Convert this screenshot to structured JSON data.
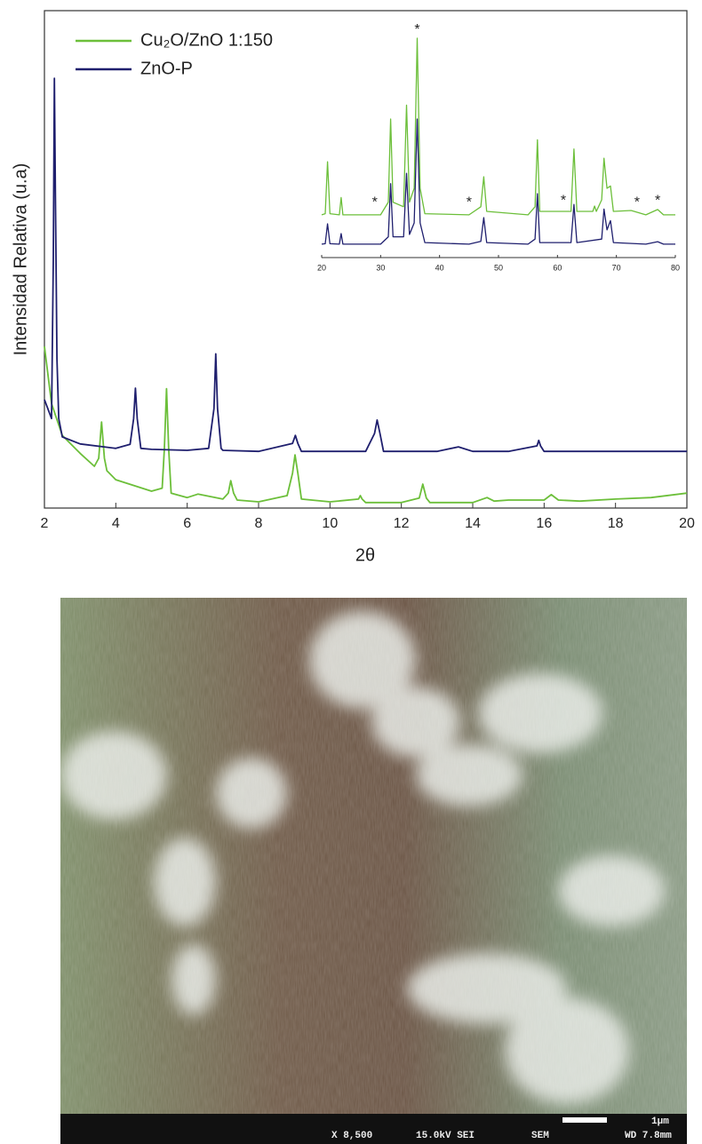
{
  "chart_data": [
    {
      "type": "line",
      "xlabel": "2θ",
      "ylabel": "Intensidad  Relativa (u.a)",
      "xlim": [
        2,
        20
      ],
      "ylim": [
        0,
        100
      ],
      "xticks": [
        2,
        4,
        6,
        8,
        10,
        12,
        14,
        16,
        18,
        20
      ],
      "legend": "upper left",
      "series": [
        {
          "name": "Cu₂O/ZnO 1:150",
          "color": "#6cbf3a",
          "x": [
            2,
            2.2,
            2.5,
            3,
            3.4,
            3.52,
            3.6,
            3.68,
            3.75,
            4,
            5,
            5.3,
            5.36,
            5.42,
            5.48,
            5.55,
            6,
            6.3,
            7,
            7.15,
            7.22,
            7.3,
            7.4,
            8,
            8.8,
            8.95,
            9.02,
            9.1,
            9.2,
            10,
            10.8,
            10.85,
            10.9,
            11,
            12,
            12.5,
            12.6,
            12.7,
            12.8,
            14,
            14.4,
            14.6,
            15,
            16,
            16.2,
            16.4,
            17,
            18,
            19,
            20
          ],
          "values": [
            32.5,
            21,
            14.6,
            11,
            8.4,
            10,
            17.3,
            10,
            7.5,
            5.7,
            3.4,
            4,
            12,
            24,
            12,
            3,
            2.1,
            2.8,
            1.8,
            3,
            5.5,
            3,
            1.6,
            1.25,
            2.5,
            7,
            10.7,
            7,
            1.8,
            1.25,
            1.8,
            2.5,
            1.8,
            1.1,
            1.1,
            2,
            4.8,
            2,
            1.1,
            1.1,
            2.1,
            1.4,
            1.6,
            1.6,
            2.7,
            1.6,
            1.4,
            1.8,
            2.1,
            3
          ]
        },
        {
          "name": "ZnO-P",
          "color": "#1f1f6e",
          "x": [
            2,
            2.2,
            2.25,
            2.28,
            2.31,
            2.35,
            2.4,
            2.5,
            3,
            4,
            4.4,
            4.5,
            4.55,
            4.6,
            4.7,
            5,
            6,
            6.6,
            6.75,
            6.8,
            6.85,
            6.95,
            7,
            8,
            8.95,
            9.03,
            9.1,
            9.2,
            10,
            11,
            11.25,
            11.32,
            11.4,
            11.5,
            13,
            13.6,
            14,
            15,
            15.8,
            15.85,
            15.9,
            16,
            18,
            20
          ],
          "values": [
            21.8,
            18,
            50,
            86.4,
            60,
            30,
            18,
            14.3,
            12.9,
            12,
            12.8,
            18,
            24.1,
            18,
            12,
            11.8,
            11.6,
            12,
            20,
            31,
            20,
            12,
            11.6,
            11.4,
            13,
            14.6,
            13,
            11.4,
            11.4,
            11.4,
            15,
            17.7,
            15,
            11.4,
            11.4,
            12.3,
            11.4,
            11.4,
            12.5,
            13.6,
            12.5,
            11.4,
            11.4,
            11.4
          ]
        }
      ]
    },
    {
      "type": "line",
      "xlim": [
        20,
        80
      ],
      "ylim": [
        0,
        100
      ],
      "xticks": [
        20,
        30,
        40,
        50,
        60,
        70,
        80
      ],
      "series": [
        {
          "color": "#6cbf3a",
          "x": [
            20,
            20.6,
            21,
            21.4,
            23,
            23.3,
            23.6,
            30,
            31.3,
            31.7,
            32.1,
            33.9,
            34.4,
            34.9,
            35.7,
            36.2,
            36.7,
            37.5,
            45,
            47,
            47.5,
            48,
            55,
            56.2,
            56.6,
            57,
            62.3,
            62.8,
            63.3,
            66,
            66.3,
            66.6,
            67.5,
            67.9,
            68.4,
            69,
            69.5,
            72.5,
            75,
            77,
            78,
            80
          ],
          "values": [
            18.5,
            19,
            41.5,
            19,
            18.5,
            26,
            18.5,
            18.5,
            24,
            60,
            24,
            22,
            66,
            24,
            30,
            95,
            30,
            19,
            18.5,
            22,
            35,
            20,
            18.5,
            22,
            51,
            20,
            20,
            47,
            20,
            20,
            22.3,
            20,
            25,
            43,
            30,
            31,
            20,
            20.4,
            18.5,
            20.8,
            18.5,
            18.5
          ]
        },
        {
          "color": "#1f1f6e",
          "x": [
            20,
            20.6,
            21,
            21.4,
            23,
            23.3,
            23.6,
            30,
            31.3,
            31.7,
            32.1,
            33.9,
            34.4,
            34.9,
            35.7,
            36.2,
            36.7,
            37.5,
            45,
            47,
            47.5,
            48,
            55,
            56.2,
            56.6,
            57,
            62.3,
            62.8,
            63.3,
            67.5,
            67.9,
            68.4,
            69,
            69.5,
            75,
            77,
            78,
            80
          ],
          "values": [
            5.8,
            6,
            14.6,
            6,
            5.8,
            10.4,
            5.8,
            5.8,
            9,
            32,
            9,
            9,
            36.5,
            10,
            15,
            60,
            15,
            6.5,
            5.8,
            7,
            17.3,
            6.5,
            5.8,
            8,
            27.7,
            6.5,
            6.5,
            23,
            6.5,
            8,
            21,
            12,
            16,
            6.5,
            5.8,
            6.9,
            5.8,
            5.8
          ]
        }
      ],
      "annotations": [
        {
          "text": "*",
          "x": 29,
          "y": 23.8
        },
        {
          "text": "*",
          "x": 36.2,
          "y": 98.5
        },
        {
          "text": "*",
          "x": 45,
          "y": 23.8
        },
        {
          "text": "*",
          "x": 61,
          "y": 24.6
        },
        {
          "text": "*",
          "x": 73.5,
          "y": 23.8
        },
        {
          "text": "*",
          "x": 77,
          "y": 24.6
        }
      ]
    }
  ],
  "sem_image": {
    "magnification": "X 8,500",
    "voltage": "15.0kV SEI",
    "mode": "SEM",
    "scale_bar": "1µm",
    "working_distance": "WD 7.8mm"
  }
}
